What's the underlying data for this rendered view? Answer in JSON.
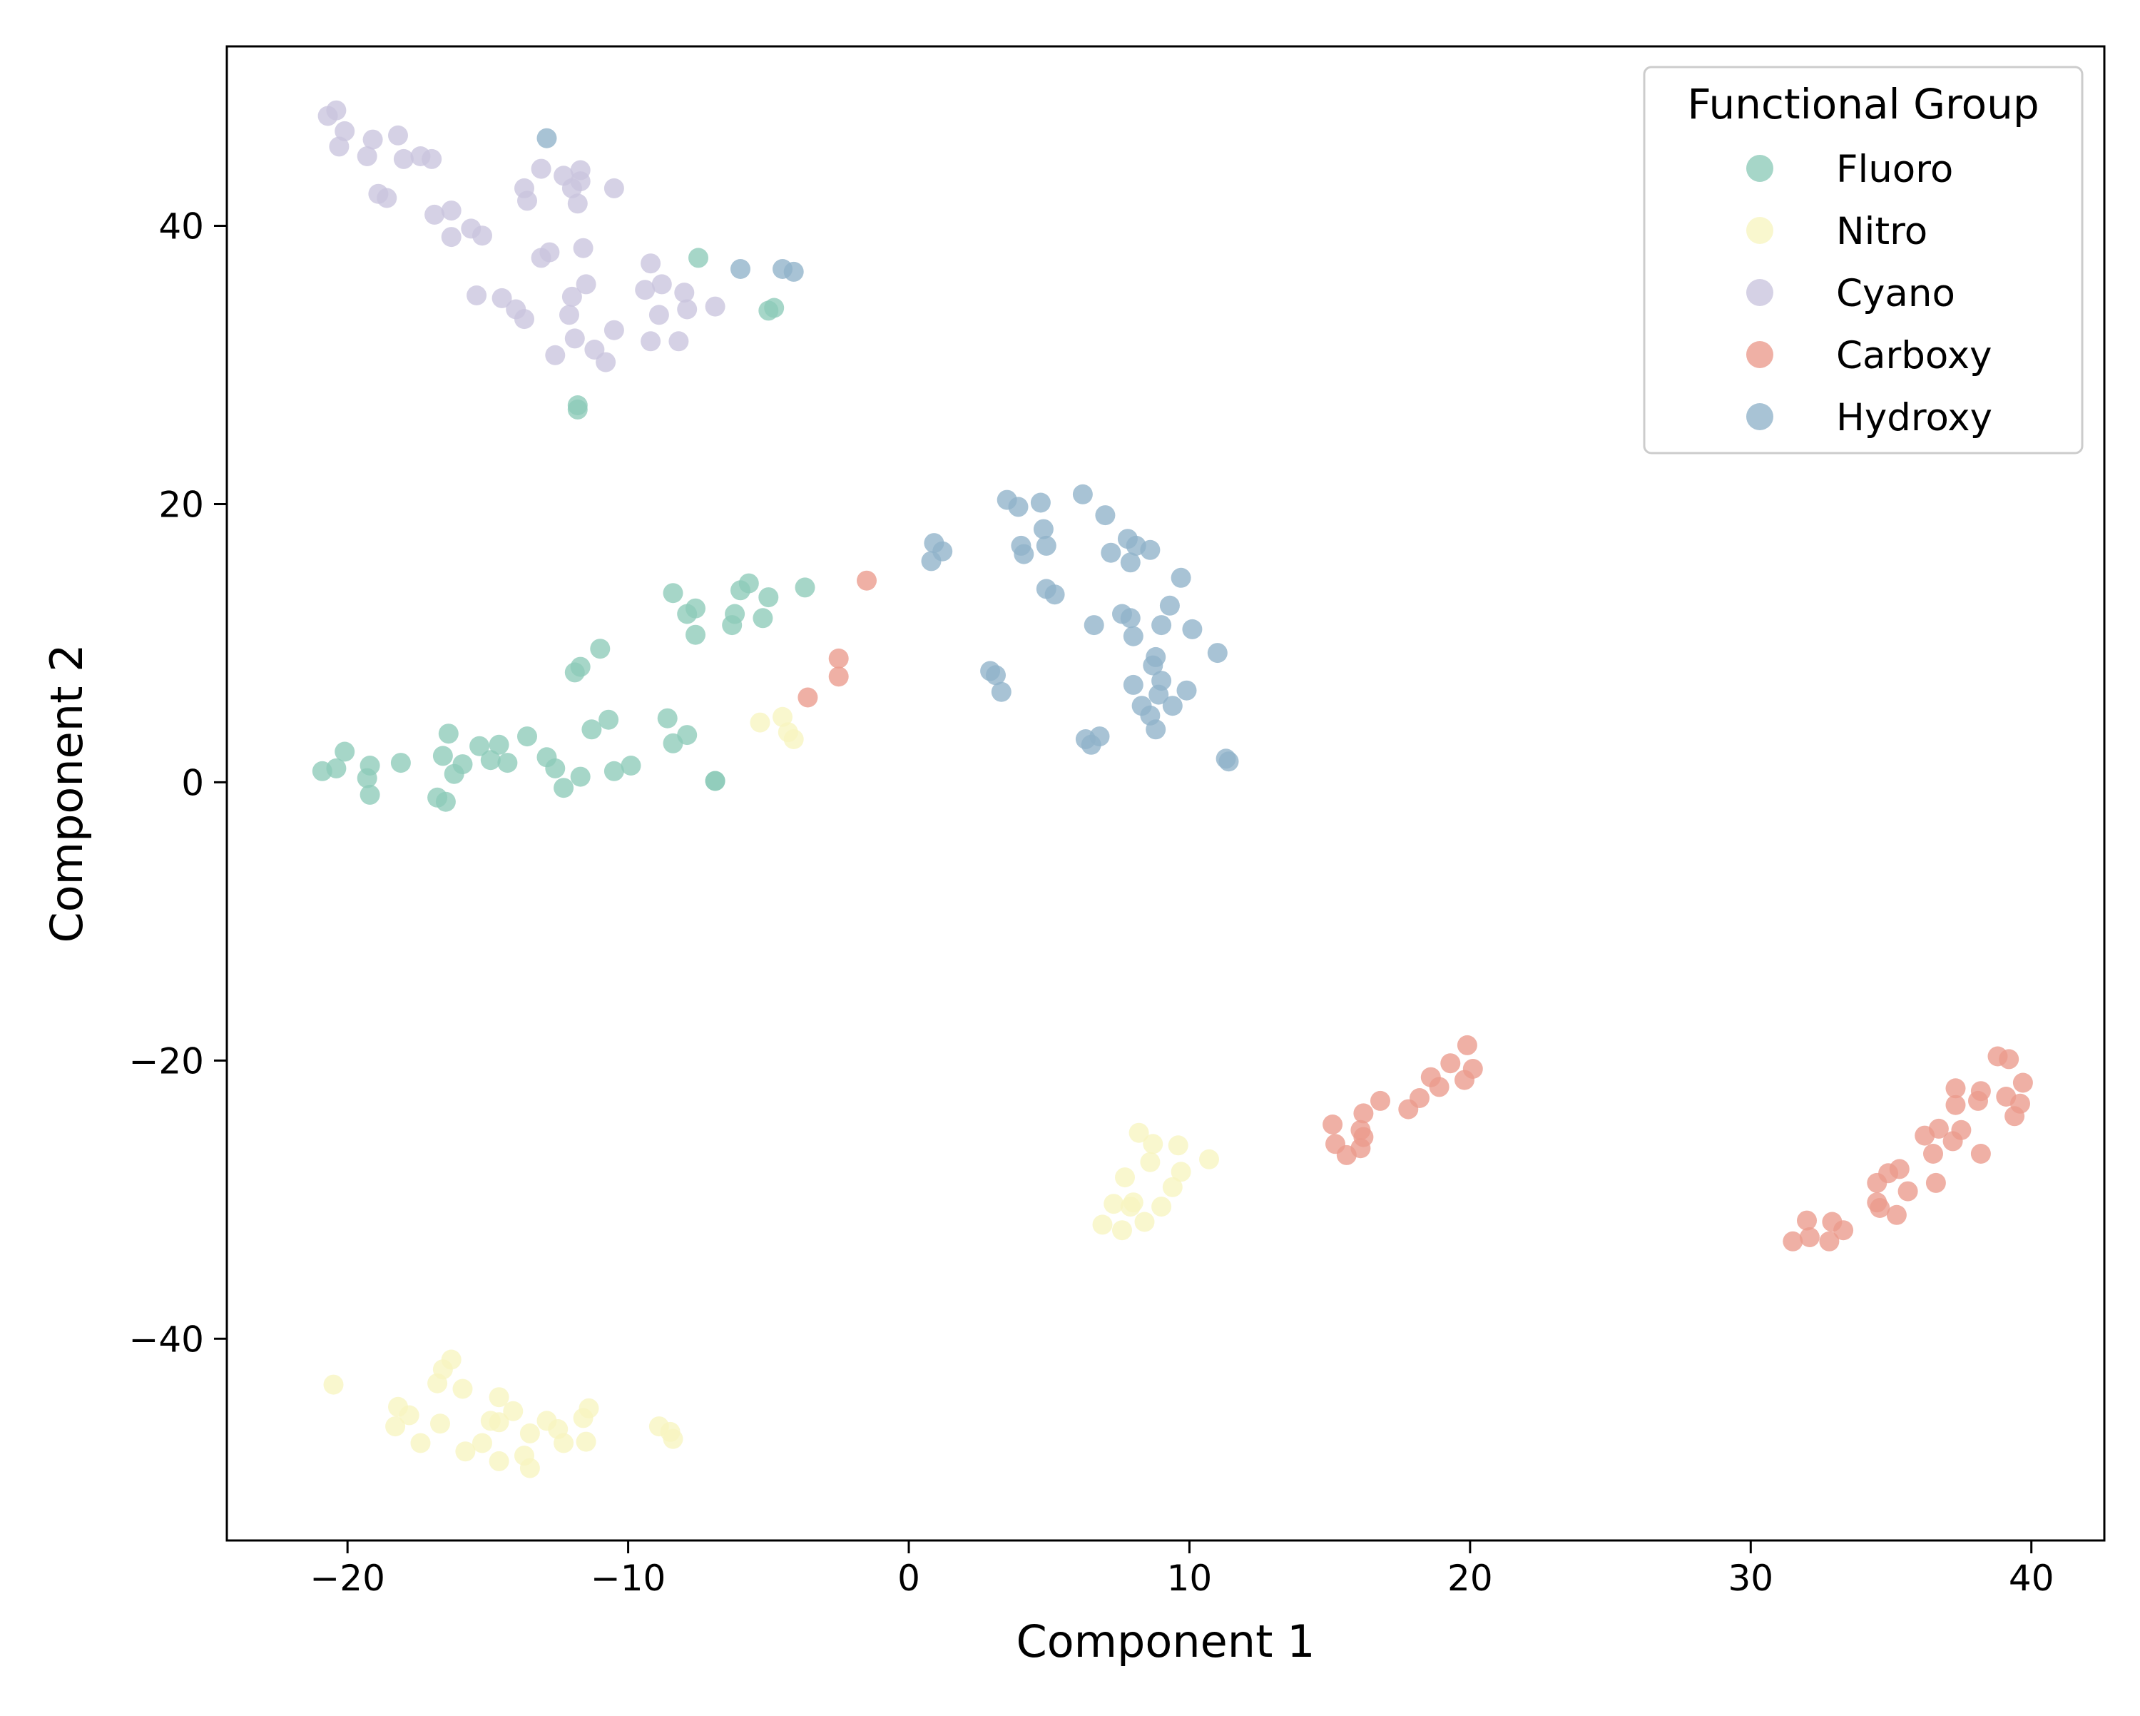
{
  "chart_data": {
    "type": "scatter",
    "title": "",
    "xlabel": "Component 1",
    "ylabel": "Component 2",
    "xlim": [
      -24.3,
      42.6
    ],
    "ylim": [
      -54.5,
      52.9
    ],
    "x_ticks": [
      -20,
      -10,
      0,
      10,
      20,
      30,
      40
    ],
    "y_ticks": [
      -40,
      -20,
      0,
      20,
      40
    ],
    "x_tick_labels": [
      "−20",
      "−10",
      "0",
      "10",
      "20",
      "30",
      "40"
    ],
    "y_tick_labels": [
      "−40",
      "−20",
      "0",
      "20",
      "40"
    ],
    "grid": false,
    "legend": {
      "title": "Functional Group",
      "position": "top-right"
    },
    "series": [
      {
        "name": "Fluoro",
        "color": "#8dcbb8",
        "points": [
          [
            -20.9,
            0.8
          ],
          [
            -20.4,
            1.0
          ],
          [
            -20.1,
            2.2
          ],
          [
            -19.3,
            0.3
          ],
          [
            -19.2,
            1.2
          ],
          [
            -19.2,
            -0.9
          ],
          [
            -18.1,
            1.4
          ],
          [
            -16.8,
            -1.1
          ],
          [
            -16.6,
            1.9
          ],
          [
            -16.5,
            -1.4
          ],
          [
            -16.4,
            3.5
          ],
          [
            -16.2,
            0.6
          ],
          [
            -15.9,
            1.3
          ],
          [
            -15.3,
            2.6
          ],
          [
            -14.9,
            1.6
          ],
          [
            -14.6,
            2.7
          ],
          [
            -14.3,
            1.4
          ],
          [
            -13.6,
            3.3
          ],
          [
            -12.9,
            1.8
          ],
          [
            -12.6,
            1.0
          ],
          [
            -12.3,
            -0.4
          ],
          [
            -11.7,
            0.4
          ],
          [
            -11.9,
            7.9
          ],
          [
            -11.7,
            8.3
          ],
          [
            -11.3,
            3.8
          ],
          [
            -11.0,
            9.6
          ],
          [
            -10.7,
            4.5
          ],
          [
            -10.5,
            0.8
          ],
          [
            -9.9,
            1.2
          ],
          [
            -8.6,
            4.6
          ],
          [
            -8.4,
            2.8
          ],
          [
            -7.9,
            3.4
          ],
          [
            -8.4,
            13.6
          ],
          [
            -7.9,
            12.1
          ],
          [
            -7.6,
            12.5
          ],
          [
            -7.6,
            10.6
          ],
          [
            -6.9,
            0.1
          ],
          [
            -6.9,
            0.1
          ],
          [
            -6.3,
            11.3
          ],
          [
            -6.2,
            12.1
          ],
          [
            -6.0,
            13.8
          ],
          [
            -5.7,
            14.3
          ],
          [
            -5.2,
            11.8
          ],
          [
            -5.0,
            13.3
          ],
          [
            -3.7,
            14.0
          ],
          [
            -7.5,
            37.7
          ],
          [
            -5.0,
            33.9
          ],
          [
            -4.8,
            34.1
          ],
          [
            -11.8,
            27.1
          ],
          [
            -11.8,
            26.8
          ]
        ]
      },
      {
        "name": "Nitro",
        "color": "#f7f5c0",
        "points": [
          [
            -20.5,
            -43.3
          ],
          [
            -18.3,
            -46.3
          ],
          [
            -18.2,
            -44.9
          ],
          [
            -17.8,
            -45.5
          ],
          [
            -17.4,
            -47.5
          ],
          [
            -16.8,
            -43.2
          ],
          [
            -16.7,
            -46.1
          ],
          [
            -16.6,
            -42.2
          ],
          [
            -16.3,
            -41.5
          ],
          [
            -15.9,
            -43.6
          ],
          [
            -15.8,
            -48.1
          ],
          [
            -15.2,
            -47.5
          ],
          [
            -14.9,
            -45.9
          ],
          [
            -14.6,
            -46.0
          ],
          [
            -14.6,
            -44.2
          ],
          [
            -14.6,
            -48.8
          ],
          [
            -14.1,
            -45.2
          ],
          [
            -13.7,
            -48.4
          ],
          [
            -13.5,
            -46.8
          ],
          [
            -13.5,
            -49.3
          ],
          [
            -12.9,
            -45.9
          ],
          [
            -12.5,
            -46.5
          ],
          [
            -12.3,
            -47.5
          ],
          [
            -11.6,
            -45.7
          ],
          [
            -11.5,
            -47.4
          ],
          [
            -11.4,
            -45.0
          ],
          [
            -8.9,
            -46.3
          ],
          [
            -8.5,
            -46.7
          ],
          [
            -8.4,
            -47.2
          ],
          [
            -5.3,
            4.3
          ],
          [
            -4.5,
            4.7
          ],
          [
            -4.3,
            3.6
          ],
          [
            -4.1,
            3.1
          ],
          [
            6.9,
            -31.8
          ],
          [
            7.3,
            -30.3
          ],
          [
            7.6,
            -32.2
          ],
          [
            7.7,
            -28.4
          ],
          [
            7.9,
            -30.5
          ],
          [
            8.0,
            -30.2
          ],
          [
            8.2,
            -25.2
          ],
          [
            8.4,
            -31.6
          ],
          [
            8.6,
            -27.3
          ],
          [
            8.7,
            -26.0
          ],
          [
            9.0,
            -30.5
          ],
          [
            9.4,
            -29.1
          ],
          [
            9.6,
            -26.1
          ],
          [
            9.7,
            -28.0
          ],
          [
            10.7,
            -27.1
          ]
        ]
      },
      {
        "name": "Cyano",
        "color": "#c9c4de",
        "points": [
          [
            -20.7,
            47.9
          ],
          [
            -20.4,
            48.3
          ],
          [
            -20.3,
            45.7
          ],
          [
            -20.1,
            46.8
          ],
          [
            -19.3,
            45.0
          ],
          [
            -19.1,
            46.2
          ],
          [
            -18.9,
            42.3
          ],
          [
            -18.6,
            42.0
          ],
          [
            -18.2,
            46.5
          ],
          [
            -18.0,
            44.8
          ],
          [
            -17.4,
            45.0
          ],
          [
            -17.0,
            44.8
          ],
          [
            -16.9,
            40.8
          ],
          [
            -16.3,
            41.1
          ],
          [
            -16.3,
            39.2
          ],
          [
            -15.6,
            39.8
          ],
          [
            -15.2,
            39.3
          ],
          [
            -15.4,
            35.0
          ],
          [
            -14.5,
            34.8
          ],
          [
            -14.0,
            34.0
          ],
          [
            -13.7,
            33.3
          ],
          [
            -13.7,
            42.7
          ],
          [
            -13.6,
            41.8
          ],
          [
            -13.1,
            44.1
          ],
          [
            -13.1,
            37.7
          ],
          [
            -12.8,
            38.1
          ],
          [
            -12.6,
            30.7
          ],
          [
            -12.3,
            43.6
          ],
          [
            -12.1,
            33.6
          ],
          [
            -12.0,
            34.9
          ],
          [
            -12.0,
            42.7
          ],
          [
            -11.9,
            31.9
          ],
          [
            -11.8,
            41.6
          ],
          [
            -11.7,
            43.2
          ],
          [
            -11.7,
            44.0
          ],
          [
            -11.6,
            38.4
          ],
          [
            -11.5,
            35.8
          ],
          [
            -11.2,
            31.1
          ],
          [
            -10.8,
            30.2
          ],
          [
            -10.5,
            32.5
          ],
          [
            -10.5,
            42.7
          ],
          [
            -9.4,
            35.4
          ],
          [
            -9.2,
            37.3
          ],
          [
            -9.2,
            31.7
          ],
          [
            -8.9,
            33.6
          ],
          [
            -8.8,
            35.8
          ],
          [
            -8.2,
            31.7
          ],
          [
            -8.0,
            35.2
          ],
          [
            -7.9,
            34.0
          ],
          [
            -6.9,
            34.2
          ]
        ]
      },
      {
        "name": "Carboxy",
        "color": "#ea9a8c",
        "points": [
          [
            -3.6,
            6.1
          ],
          [
            -2.5,
            7.6
          ],
          [
            -2.5,
            8.9
          ],
          [
            -1.5,
            14.5
          ],
          [
            15.1,
            -24.6
          ],
          [
            15.2,
            -26.0
          ],
          [
            15.6,
            -26.8
          ],
          [
            16.1,
            -25.0
          ],
          [
            16.1,
            -26.3
          ],
          [
            16.2,
            -23.8
          ],
          [
            16.2,
            -25.5
          ],
          [
            16.8,
            -22.9
          ],
          [
            17.8,
            -23.5
          ],
          [
            18.2,
            -22.7
          ],
          [
            18.6,
            -21.2
          ],
          [
            18.9,
            -21.9
          ],
          [
            19.3,
            -20.2
          ],
          [
            19.8,
            -21.4
          ],
          [
            19.9,
            -18.9
          ],
          [
            20.1,
            -20.6
          ],
          [
            31.5,
            -33.0
          ],
          [
            32.0,
            -31.5
          ],
          [
            32.1,
            -32.7
          ],
          [
            32.8,
            -33.0
          ],
          [
            32.9,
            -31.6
          ],
          [
            33.3,
            -32.2
          ],
          [
            34.5,
            -28.8
          ],
          [
            34.5,
            -30.2
          ],
          [
            34.6,
            -30.6
          ],
          [
            34.9,
            -28.1
          ],
          [
            35.2,
            -31.1
          ],
          [
            35.3,
            -27.8
          ],
          [
            35.6,
            -29.4
          ],
          [
            36.2,
            -25.4
          ],
          [
            36.5,
            -26.7
          ],
          [
            36.6,
            -28.8
          ],
          [
            36.7,
            -24.9
          ],
          [
            37.2,
            -25.8
          ],
          [
            37.3,
            -23.2
          ],
          [
            37.3,
            -22.0
          ],
          [
            37.5,
            -25.0
          ],
          [
            38.1,
            -22.9
          ],
          [
            38.2,
            -22.2
          ],
          [
            38.2,
            -26.7
          ],
          [
            38.8,
            -19.7
          ],
          [
            39.1,
            -22.6
          ],
          [
            39.2,
            -19.9
          ],
          [
            39.4,
            -24.0
          ],
          [
            39.6,
            -23.1
          ],
          [
            39.7,
            -21.6
          ]
        ]
      },
      {
        "name": "Hydroxy",
        "color": "#8fb2c9",
        "points": [
          [
            -12.9,
            46.3
          ],
          [
            -6.0,
            36.9
          ],
          [
            -4.5,
            36.9
          ],
          [
            -4.1,
            36.7
          ],
          [
            0.8,
            15.9
          ],
          [
            0.9,
            17.2
          ],
          [
            1.2,
            16.6
          ],
          [
            2.9,
            8.0
          ],
          [
            3.1,
            7.7
          ],
          [
            3.3,
            6.5
          ],
          [
            3.5,
            20.3
          ],
          [
            3.9,
            19.8
          ],
          [
            4.0,
            17.0
          ],
          [
            4.1,
            16.4
          ],
          [
            4.7,
            20.1
          ],
          [
            4.8,
            18.2
          ],
          [
            4.9,
            17.0
          ],
          [
            4.9,
            13.9
          ],
          [
            5.2,
            13.5
          ],
          [
            6.2,
            20.7
          ],
          [
            6.3,
            3.1
          ],
          [
            6.5,
            2.7
          ],
          [
            6.6,
            11.3
          ],
          [
            6.8,
            3.3
          ],
          [
            7.0,
            19.2
          ],
          [
            7.2,
            16.5
          ],
          [
            7.6,
            12.1
          ],
          [
            7.8,
            17.5
          ],
          [
            7.9,
            11.8
          ],
          [
            7.9,
            15.8
          ],
          [
            8.0,
            10.5
          ],
          [
            8.0,
            7.0
          ],
          [
            8.1,
            17.0
          ],
          [
            8.3,
            5.5
          ],
          [
            8.6,
            16.7
          ],
          [
            8.6,
            4.8
          ],
          [
            8.7,
            8.4
          ],
          [
            8.8,
            9.0
          ],
          [
            8.8,
            3.8
          ],
          [
            8.9,
            6.3
          ],
          [
            9.0,
            11.3
          ],
          [
            9.0,
            7.3
          ],
          [
            9.3,
            12.7
          ],
          [
            9.4,
            5.5
          ],
          [
            9.7,
            14.7
          ],
          [
            9.9,
            6.6
          ],
          [
            10.1,
            11.0
          ],
          [
            11.0,
            9.3
          ],
          [
            11.3,
            1.7
          ],
          [
            11.4,
            1.5
          ]
        ]
      }
    ]
  }
}
